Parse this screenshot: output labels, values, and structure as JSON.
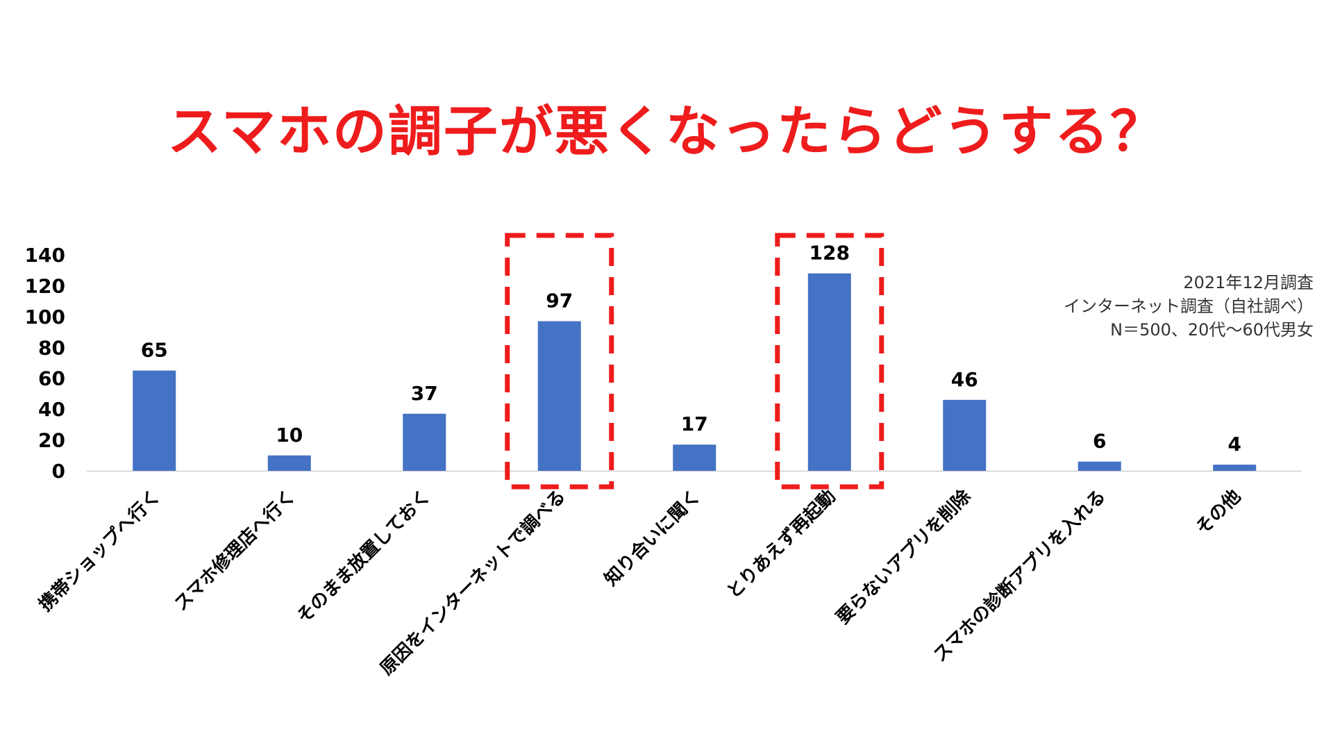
{
  "chart_data": {
    "type": "bar",
    "title": "スマホの調子が悪くなったらどうする？",
    "categories": [
      "携帯ショップへ行く",
      "スマホ修理店へ行く",
      "そのまま放置しておく",
      "原因をインターネットで調べる",
      "知り合いに聞く",
      "とりあえず再起動",
      "要らないアプリを削除",
      "スマホの診断アプリを入れる",
      "その他"
    ],
    "values": [
      65,
      10,
      37,
      97,
      17,
      128,
      46,
      6,
      4
    ],
    "yticks": [
      "0",
      "20",
      "40",
      "60",
      "80",
      "100",
      "120",
      "140"
    ],
    "ylim": [
      0,
      140
    ],
    "xlabel": "",
    "ylabel": "",
    "grid": false,
    "highlighted_categories": [
      "原因をインターネットで調べる",
      "とりあえず再起動"
    ],
    "bar_color": "#4472c4",
    "highlight_color": "#ee1c1c",
    "note": [
      "2021年12月調査",
      "インターネット調査（自社調べ）",
      "N＝500、20代～60代男女"
    ]
  }
}
